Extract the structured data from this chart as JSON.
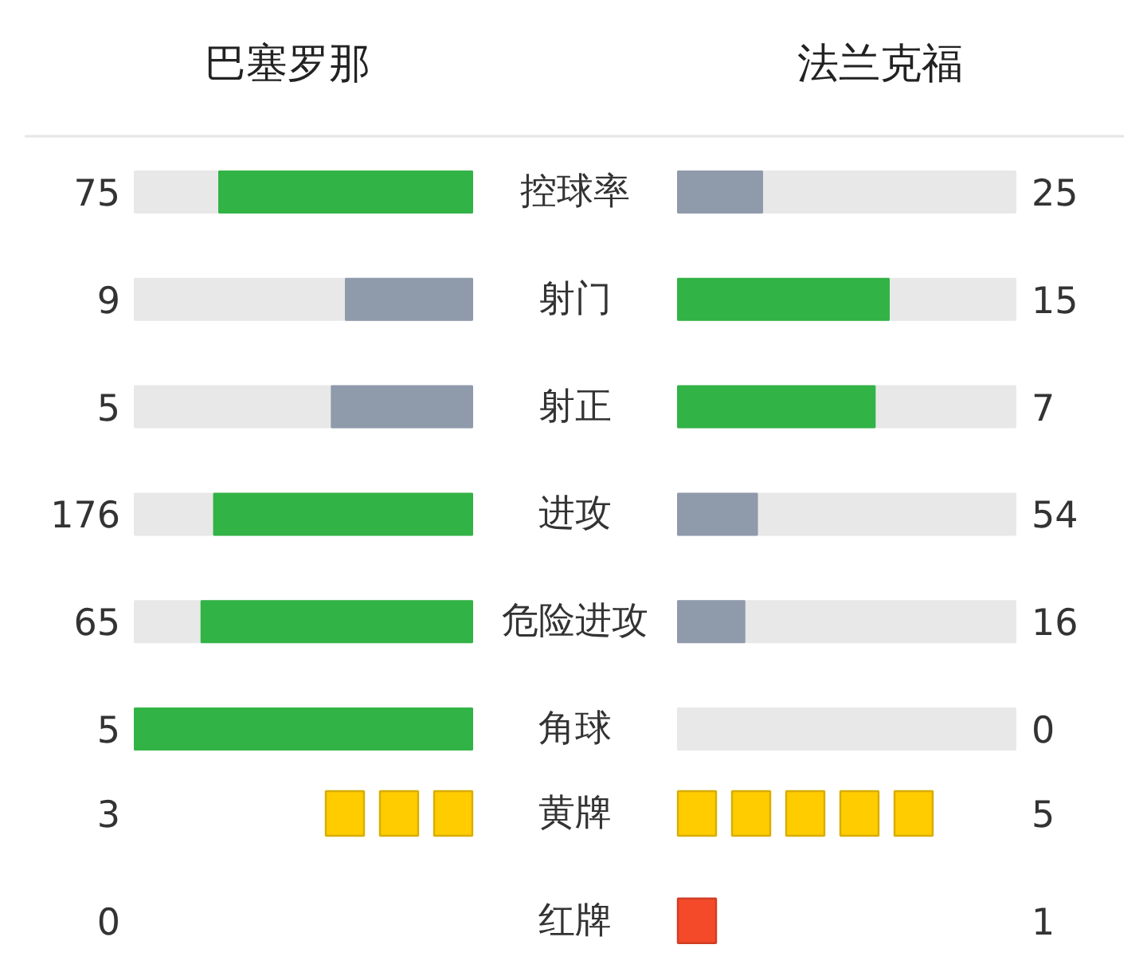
{
  "chart_data": [
    {
      "type": "other",
      "data_labels": true,
      "categories": [
        "控球率",
        "射门",
        "射正",
        "进攻",
        "危险进攻",
        "角球"
      ],
      "series": [
        {
          "name": "巴塞罗那",
          "values": [
            75,
            9,
            5,
            176,
            65,
            5
          ],
          "colors": [
            "#32b346",
            "#8f9aab",
            "#8f9aab",
            "#32b346",
            "#32b346",
            "#32b346"
          ]
        },
        {
          "name": "法兰克福",
          "values": [
            25,
            15,
            7,
            54,
            16,
            0
          ],
          "colors": [
            "#8f9aab",
            "#32b346",
            "#32b346",
            "#8f9aab",
            "#8f9aab",
            "#8f9aab"
          ]
        }
      ]
    },
    {
      "type": "other",
      "data_labels": true,
      "categories": [
        "黄牌",
        "红牌"
      ],
      "series": [
        {
          "values": [
            3,
            0
          ],
          "colors": [
            "#ffcc00",
            "#f44a2a"
          ]
        },
        {
          "values": [
            5,
            1
          ],
          "colors": [
            "#ffcc00",
            "#f44a2a"
          ]
        }
      ]
    }
  ]
}
